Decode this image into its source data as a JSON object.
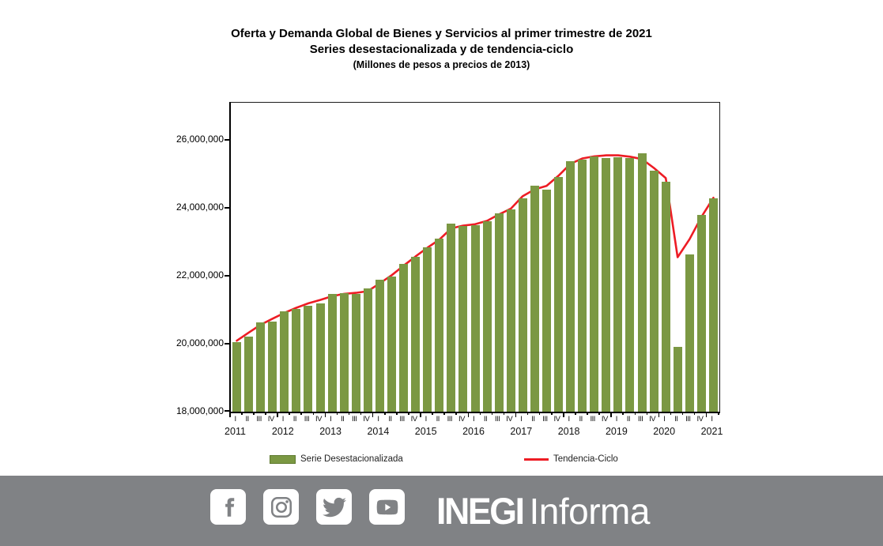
{
  "title": {
    "line1": "Oferta y Demanda Global de Bienes y Servicios al primer trimestre de 2021",
    "line2": "Series desestacionalizada y de tendencia-ciclo",
    "line3": "(Millones  de pesos a precios de 2013)"
  },
  "chart_data": {
    "type": "bar",
    "x_quarters": [
      "I",
      "II",
      "III",
      "IV",
      "I",
      "II",
      "III",
      "IV",
      "I",
      "II",
      "III",
      "IV",
      "I",
      "II",
      "III",
      "IV",
      "I",
      "II",
      "III",
      "IV",
      "I",
      "II",
      "III",
      "IV",
      "I",
      "II",
      "III",
      "IV",
      "I",
      "II",
      "III",
      "IV",
      "I",
      "II",
      "III",
      "IV",
      "I",
      "II",
      "III",
      "IV",
      "I"
    ],
    "x_years": [
      "2011",
      "2012",
      "2013",
      "2014",
      "2015",
      "2016",
      "2017",
      "2018",
      "2019",
      "2020",
      "2021"
    ],
    "series": [
      {
        "name": "Serie Desestacionalizada",
        "type": "bar",
        "color": "#7B9843",
        "values": [
          20060000,
          20200000,
          20630000,
          20650000,
          20950000,
          21030000,
          21120000,
          21180000,
          21470000,
          21490000,
          21460000,
          21640000,
          21880000,
          21970000,
          22360000,
          22560000,
          22830000,
          23100000,
          23530000,
          23470000,
          23500000,
          23620000,
          23850000,
          23970000,
          24290000,
          24650000,
          24530000,
          24920000,
          25380000,
          25420000,
          25520000,
          25480000,
          25500000,
          25480000,
          25600000,
          25090000,
          24780000,
          19900000,
          22640000,
          23790000,
          24280000
        ]
      },
      {
        "name": "Tendencia-Ciclo",
        "type": "line",
        "color": "#ED1C24",
        "values": [
          20090000,
          20330000,
          20560000,
          20740000,
          20910000,
          21060000,
          21190000,
          21290000,
          21400000,
          21470000,
          21500000,
          21550000,
          21780000,
          22020000,
          22300000,
          22570000,
          22830000,
          23070000,
          23400000,
          23480000,
          23520000,
          23620000,
          23810000,
          23980000,
          24350000,
          24550000,
          24650000,
          24950000,
          25300000,
          25460000,
          25520000,
          25550000,
          25550000,
          25510000,
          25440000,
          25180000,
          24880000,
          22550000,
          23080000,
          23740000,
          24300000
        ]
      }
    ],
    "ylim": [
      18000000,
      27100000
    ],
    "yticks": [
      {
        "value": 18000000,
        "label": "18,000,000"
      },
      {
        "value": 20000000,
        "label": "20,000,000"
      },
      {
        "value": 22000000,
        "label": "22,000,000"
      },
      {
        "value": 24000000,
        "label": "24,000,000"
      },
      {
        "value": 26000000,
        "label": "26,000,000"
      }
    ],
    "grid": false,
    "legend_position": "bottom"
  },
  "footer": {
    "icons": [
      "facebook-icon",
      "instagram-icon",
      "twitter-icon",
      "youtube-icon"
    ],
    "brand_bold": "INEGI",
    "brand_light": "Informa",
    "background": "#808285"
  }
}
